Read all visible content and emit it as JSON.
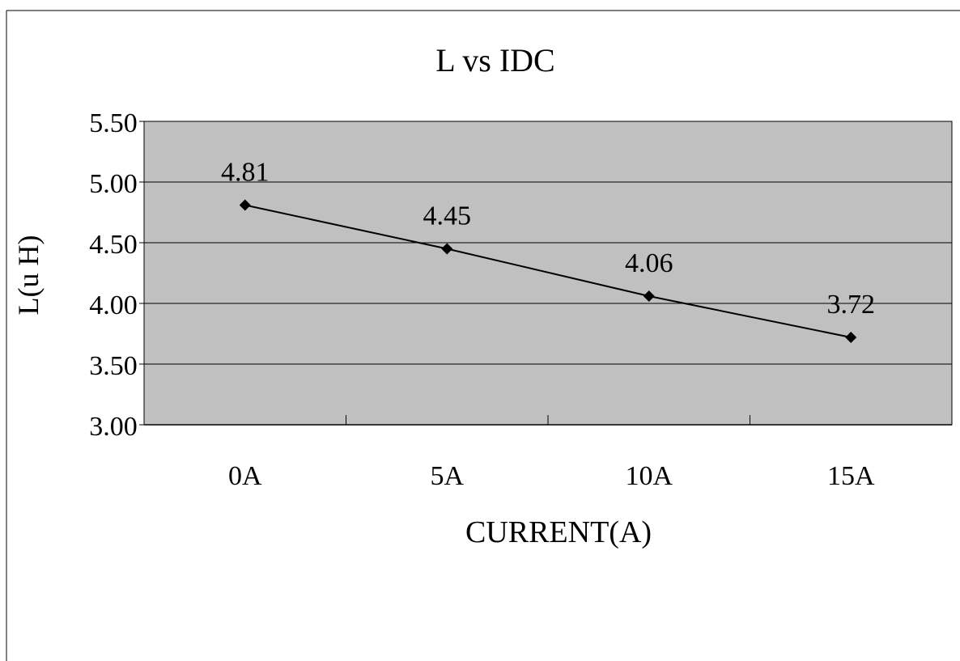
{
  "chart_data": {
    "type": "line",
    "title": "L vs IDC",
    "xlabel": "CURRENT(A)",
    "ylabel": "L(u H)",
    "categories": [
      "0A",
      "5A",
      "10A",
      "15A"
    ],
    "series": [
      {
        "values": [
          4.81,
          4.45,
          4.06,
          3.72
        ]
      }
    ],
    "data_labels": [
      "4.81",
      "4.45",
      "4.06",
      "3.72"
    ],
    "y_ticks": [
      "3.00",
      "3.50",
      "4.00",
      "4.50",
      "5.00",
      "5.50"
    ],
    "y_tick_values": [
      3.0,
      3.5,
      4.0,
      4.5,
      5.0,
      5.5
    ],
    "ylim": [
      3.0,
      5.5
    ],
    "grid": true,
    "legend": "none",
    "colors": {
      "plot_background": "#c0c0c0",
      "line": "#000000",
      "marker": "#000000",
      "gridline": "#000000"
    },
    "marker": "diamond"
  }
}
